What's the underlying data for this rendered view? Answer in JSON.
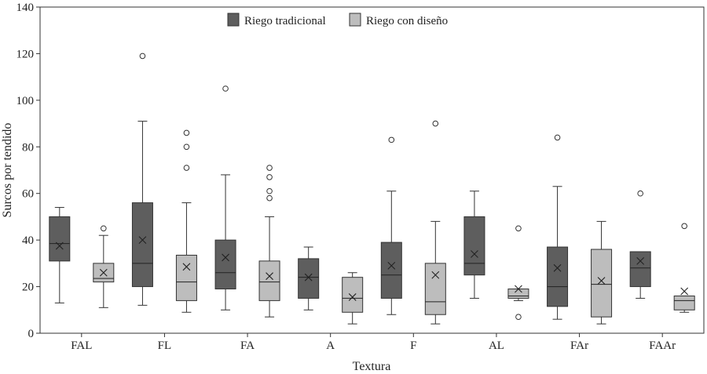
{
  "chart_data": {
    "type": "boxplot",
    "xlabel": "Textura",
    "ylabel": "Surcos por tendido",
    "ylim": [
      0,
      140
    ],
    "yticks": [
      0,
      20,
      40,
      60,
      80,
      100,
      120,
      140
    ],
    "categories": [
      "FAL",
      "FL",
      "FA",
      "A",
      "F",
      "AL",
      "FAr",
      "FAAr"
    ],
    "legend_position": "top-center",
    "grid": false,
    "series": [
      {
        "name": "Riego tradicional",
        "color": "#5e5e5e",
        "boxes": [
          {
            "min": 13,
            "q1": 31,
            "median": 38.5,
            "q3": 50,
            "max": 54,
            "mean": 37.5,
            "outliers": []
          },
          {
            "min": 12,
            "q1": 20,
            "median": 30,
            "q3": 56,
            "max": 91,
            "mean": 40,
            "outliers": [
              119
            ]
          },
          {
            "min": 10,
            "q1": 19,
            "median": 26,
            "q3": 40,
            "max": 68,
            "mean": 32.5,
            "outliers": [
              105
            ]
          },
          {
            "min": 10,
            "q1": 15,
            "median": 24,
            "q3": 32,
            "max": 37,
            "mean": 24,
            "outliers": []
          },
          {
            "min": 8,
            "q1": 15,
            "median": 25,
            "q3": 39,
            "max": 61,
            "mean": 29,
            "outliers": [
              83
            ]
          },
          {
            "min": 15,
            "q1": 25,
            "median": 30,
            "q3": 50,
            "max": 61,
            "mean": 34,
            "outliers": []
          },
          {
            "min": 6,
            "q1": 11.5,
            "median": 20,
            "q3": 37,
            "max": 63,
            "mean": 28,
            "outliers": [
              84
            ]
          },
          {
            "min": 15,
            "q1": 20,
            "median": 28,
            "q3": 35,
            "max": 35,
            "mean": 31,
            "outliers": [
              60
            ]
          }
        ]
      },
      {
        "name": "Riego con diseño",
        "color": "#bdbdbd",
        "boxes": [
          {
            "min": 11,
            "q1": 22,
            "median": 23.5,
            "q3": 30,
            "max": 42,
            "mean": 26,
            "outliers": [
              45
            ]
          },
          {
            "min": 9,
            "q1": 14,
            "median": 22,
            "q3": 33.5,
            "max": 56,
            "mean": 28.5,
            "outliers": [
              71,
              80,
              86
            ]
          },
          {
            "min": 7,
            "q1": 14,
            "median": 22,
            "q3": 31,
            "max": 50,
            "mean": 24.5,
            "outliers": [
              58,
              61,
              67,
              71
            ]
          },
          {
            "min": 4,
            "q1": 9,
            "median": 15,
            "q3": 24,
            "max": 26,
            "mean": 15.5,
            "outliers": []
          },
          {
            "min": 4,
            "q1": 8,
            "median": 13.5,
            "q3": 30,
            "max": 48,
            "mean": 25,
            "outliers": [
              90
            ]
          },
          {
            "min": 14,
            "q1": 15,
            "median": 16,
            "q3": 19,
            "max": 19,
            "mean": 19,
            "outliers": [
              7,
              45
            ]
          },
          {
            "min": 4,
            "q1": 7,
            "median": 21,
            "q3": 36,
            "max": 48,
            "mean": 22.5,
            "outliers": []
          },
          {
            "min": 9,
            "q1": 10,
            "median": 14,
            "q3": 16,
            "max": 16,
            "mean": 18,
            "outliers": [
              46
            ]
          }
        ]
      }
    ]
  }
}
